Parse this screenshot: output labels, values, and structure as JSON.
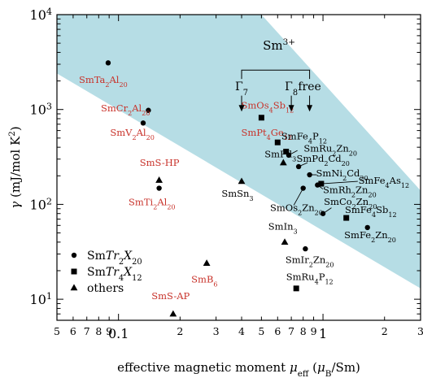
{
  "chart_data": {
    "type": "scatter",
    "title": "",
    "xlabel": {
      "prefix": "effective magnetic moment ",
      "sym": "μ",
      "sub": "eff",
      "unit_open": " (",
      "unit_sym": "μ",
      "unit_sub": "B",
      "unit_close": "/Sm)"
    },
    "ylabel": {
      "sym": "γ",
      "unit": " (mJ/mol K",
      "sup": "2",
      "close": ")"
    },
    "x_scale": "log",
    "y_scale": "log",
    "xlim": [
      0.05,
      3
    ],
    "ylim": [
      6,
      10000
    ],
    "grid": false,
    "x_tick_labels": [
      {
        "v": 0.05,
        "t": "5"
      },
      {
        "v": 0.06,
        "t": "6"
      },
      {
        "v": 0.07,
        "t": "7"
      },
      {
        "v": 0.08,
        "t": "8"
      },
      {
        "v": 0.09,
        "t": "9"
      },
      {
        "v": 0.1,
        "t": "0.1",
        "major": true
      },
      {
        "v": 0.2,
        "t": "2"
      },
      {
        "v": 0.3,
        "t": "3"
      },
      {
        "v": 0.4,
        "t": "4"
      },
      {
        "v": 0.5,
        "t": "5"
      },
      {
        "v": 0.6,
        "t": "6"
      },
      {
        "v": 0.7,
        "t": "7"
      },
      {
        "v": 0.8,
        "t": "8"
      },
      {
        "v": 0.9,
        "t": "9"
      },
      {
        "v": 1,
        "t": "1",
        "major": true
      },
      {
        "v": 2,
        "t": "2"
      },
      {
        "v": 3,
        "t": "3"
      }
    ],
    "y_tick_labels": [
      {
        "v": 10,
        "base": "10",
        "exp": "1"
      },
      {
        "v": 100,
        "base": "10",
        "exp": "2"
      },
      {
        "v": 1000,
        "base": "10",
        "exp": "3"
      },
      {
        "v": 10000,
        "base": "10",
        "exp": "4"
      }
    ],
    "band": {
      "color": "#b6dde5",
      "upper": [
        [
          0.05,
          10000
        ],
        [
          0.5,
          10000
        ],
        [
          3,
          140
        ]
      ],
      "lower": [
        [
          0.05,
          2400
        ],
        [
          3,
          13
        ]
      ]
    },
    "highlight_color": "#c8322a",
    "points": [
      {
        "name": "SmTa2Al20",
        "marker": "circle",
        "x": 0.089,
        "y": 3100
      },
      {
        "name": "SmCr2Al20",
        "marker": "circle",
        "x": 0.14,
        "y": 980
      },
      {
        "name": "SmV2Al20",
        "marker": "circle",
        "x": 0.132,
        "y": 720
      },
      {
        "name": "SmS-HP",
        "marker": "triangle",
        "x": 0.158,
        "y": 180
      },
      {
        "name": "SmTi2Al20",
        "marker": "circle",
        "x": 0.158,
        "y": 148
      },
      {
        "name": "SmB6",
        "marker": "triangle",
        "x": 0.27,
        "y": 24
      },
      {
        "name": "SmS-AP",
        "marker": "triangle",
        "x": 0.185,
        "y": 7
      },
      {
        "name": "SmSn3",
        "marker": "triangle",
        "x": 0.4,
        "y": 175
      },
      {
        "name": "SmOs4Sb12",
        "marker": "square",
        "x": 0.5,
        "y": 820
      },
      {
        "name": "SmPt4Ge12",
        "marker": "square",
        "x": 0.6,
        "y": 450
      },
      {
        "name": "SmFe4P12",
        "marker": "square",
        "x": 0.66,
        "y": 360
      },
      {
        "name": "SmRu2Zn20",
        "marker": "circle",
        "x": 0.68,
        "y": 330
      },
      {
        "name": "SmPd3",
        "marker": "triangle",
        "x": 0.64,
        "y": 275
      },
      {
        "name": "SmPd2Cd20",
        "marker": "circle",
        "x": 0.76,
        "y": 250
      },
      {
        "name": "SmNi2Cd20",
        "marker": "circle",
        "x": 0.86,
        "y": 205
      },
      {
        "name": "SmFe4As12",
        "marker": "square",
        "x": 0.98,
        "y": 165
      },
      {
        "name": "SmRh2Zn20",
        "marker": "circle",
        "x": 0.94,
        "y": 160
      },
      {
        "name": "SmOs2Zn20",
        "marker": "circle",
        "x": 0.8,
        "y": 148
      },
      {
        "name": "SmCo2Zn20",
        "marker": "circle",
        "x": 1.0,
        "y": 80
      },
      {
        "name": "SmFe4Sb12",
        "marker": "square",
        "x": 1.3,
        "y": 72
      },
      {
        "name": "SmFe2Zn20",
        "marker": "circle",
        "x": 1.65,
        "y": 57
      },
      {
        "name": "SmIn3",
        "marker": "triangle",
        "x": 0.65,
        "y": 40
      },
      {
        "name": "SmIr2Zn20",
        "marker": "circle",
        "x": 0.82,
        "y": 34
      },
      {
        "name": "SmRu4P12",
        "marker": "square",
        "x": 0.74,
        "y": 13
      }
    ],
    "labels": [
      {
        "point": "SmTa2Al20",
        "parts": [
          [
            "Sm"
          ],
          [
            "Ta"
          ],
          [
            "2",
            "sub"
          ],
          [
            "Al"
          ],
          [
            "20",
            "sub"
          ]
        ],
        "highlight": true,
        "x": 0.064,
        "y": 1900
      },
      {
        "point": "SmCr2Al20",
        "parts": [
          [
            "Sm"
          ],
          [
            "Cr"
          ],
          [
            "2",
            "sub"
          ],
          [
            "Al"
          ],
          [
            "20",
            "sub"
          ]
        ],
        "highlight": true,
        "x": 0.082,
        "y": 960
      },
      {
        "point": "SmV2Al20",
        "parts": [
          [
            "Sm"
          ],
          [
            "V"
          ],
          [
            "2",
            "sub"
          ],
          [
            "Al"
          ],
          [
            "20",
            "sub"
          ]
        ],
        "highlight": true,
        "x": 0.091,
        "y": 530
      },
      {
        "point": "SmS-HP",
        "parts": [
          [
            "SmS-HP"
          ]
        ],
        "highlight": true,
        "x": 0.127,
        "y": 255
      },
      {
        "point": "SmTi2Al20",
        "parts": [
          [
            "Sm"
          ],
          [
            "Ti"
          ],
          [
            "2",
            "sub"
          ],
          [
            "Al"
          ],
          [
            "20",
            "sub"
          ]
        ],
        "highlight": true,
        "x": 0.112,
        "y": 98
      },
      {
        "point": "SmB6",
        "parts": [
          [
            "Sm"
          ],
          [
            "B"
          ],
          [
            "6",
            "sub"
          ]
        ],
        "highlight": true,
        "x": 0.227,
        "y": 15
      },
      {
        "point": "SmS-AP",
        "parts": [
          [
            "SmS-AP"
          ]
        ],
        "highlight": true,
        "x": 0.145,
        "y": 10
      },
      {
        "point": "SmSn3",
        "parts": [
          [
            "Sm"
          ],
          [
            "Sn"
          ],
          [
            "3",
            "sub"
          ]
        ],
        "highlight": false,
        "x": 0.319,
        "y": 120
      },
      {
        "point": "SmOs4Sb12",
        "parts": [
          [
            "Sm"
          ],
          [
            "Os"
          ],
          [
            "4",
            "sub"
          ],
          [
            "Sb"
          ],
          [
            "12",
            "sub"
          ]
        ],
        "highlight": true,
        "x": 0.398,
        "y": 1020
      },
      {
        "point": "SmPt4Ge12",
        "parts": [
          [
            "Sm"
          ],
          [
            "Pt"
          ],
          [
            "4",
            "sub"
          ],
          [
            "Ge"
          ],
          [
            "12",
            "sub"
          ]
        ],
        "highlight": true,
        "x": 0.398,
        "y": 530
      },
      {
        "point": "SmFe4P12",
        "parts": [
          [
            "Sm"
          ],
          [
            "Fe"
          ],
          [
            "4",
            "sub"
          ],
          [
            "P"
          ],
          [
            "12",
            "sub"
          ]
        ],
        "highlight": false,
        "x": 0.626,
        "y": 485
      },
      {
        "point": "SmRu2Zn20",
        "parts": [
          [
            "Sm"
          ],
          [
            "Ru"
          ],
          [
            "2",
            "sub"
          ],
          [
            "Zn"
          ],
          [
            "20",
            "sub"
          ]
        ],
        "highlight": false,
        "x": 0.805,
        "y": 360
      },
      {
        "point": "SmPd3",
        "parts": [
          [
            "Sm"
          ],
          [
            "Pd"
          ],
          [
            "3",
            "sub"
          ]
        ],
        "highlight": false,
        "x": 0.518,
        "y": 315
      },
      {
        "point": "SmPd2Cd20",
        "parts": [
          [
            "Sm"
          ],
          [
            "Pd"
          ],
          [
            "2",
            "sub"
          ],
          [
            "Cd"
          ],
          [
            "20",
            "sub"
          ]
        ],
        "highlight": false,
        "x": 0.742,
        "y": 282
      },
      {
        "point": "SmNi2Cd20",
        "parts": [
          [
            "Sm"
          ],
          [
            "Ni"
          ],
          [
            "2",
            "sub"
          ],
          [
            "Cd"
          ],
          [
            "20",
            "sub"
          ]
        ],
        "highlight": false,
        "x": 0.925,
        "y": 198
      },
      {
        "point": "SmFe4As12",
        "parts": [
          [
            "Sm"
          ],
          [
            "Fe"
          ],
          [
            "4",
            "sub"
          ],
          [
            "As"
          ],
          [
            "12",
            "sub"
          ]
        ],
        "highlight": false,
        "x": 1.49,
        "y": 165
      },
      {
        "point": "SmRh2Zn20",
        "parts": [
          [
            "Sm"
          ],
          [
            "Rh"
          ],
          [
            "2",
            "sub"
          ],
          [
            "Zn"
          ],
          [
            "20",
            "sub"
          ]
        ],
        "highlight": false,
        "x": 1.0,
        "y": 132
      },
      {
        "point": "SmOs2Zn20",
        "parts": [
          [
            "Sm"
          ],
          [
            "Os"
          ],
          [
            "2",
            "sub"
          ],
          [
            "Zn"
          ],
          [
            "20",
            "sub"
          ]
        ],
        "highlight": false,
        "x": 0.551,
        "y": 85
      },
      {
        "point": "SmCo2Zn20",
        "parts": [
          [
            "Sm"
          ],
          [
            "Co"
          ],
          [
            "2",
            "sub"
          ],
          [
            "Zn"
          ],
          [
            "20",
            "sub"
          ]
        ],
        "highlight": false,
        "x": 1.01,
        "y": 99
      },
      {
        "point": "SmFe4Sb12",
        "parts": [
          [
            "Sm"
          ],
          [
            "Fe"
          ],
          [
            "4",
            "sub"
          ],
          [
            "Sb"
          ],
          [
            "12",
            "sub"
          ]
        ],
        "highlight": false,
        "x": 1.28,
        "y": 81
      },
      {
        "point": "SmFe2Zn20",
        "parts": [
          [
            "Sm"
          ],
          [
            "Fe"
          ],
          [
            "2",
            "sub"
          ],
          [
            "Zn"
          ],
          [
            "20",
            "sub"
          ]
        ],
        "highlight": false,
        "x": 1.27,
        "y": 44
      },
      {
        "point": "SmIn3",
        "parts": [
          [
            "Sm"
          ],
          [
            "In"
          ],
          [
            "3",
            "sub"
          ]
        ],
        "highlight": false,
        "x": 0.54,
        "y": 54
      },
      {
        "point": "SmIr2Zn20",
        "parts": [
          [
            "Sm"
          ],
          [
            "Ir"
          ],
          [
            "2",
            "sub"
          ],
          [
            "Zn"
          ],
          [
            "20",
            "sub"
          ]
        ],
        "highlight": false,
        "x": 0.655,
        "y": 24
      },
      {
        "point": "SmRu4P12",
        "parts": [
          [
            "Sm"
          ],
          [
            "Ru"
          ],
          [
            "4",
            "sub"
          ],
          [
            "P"
          ],
          [
            "12",
            "sub"
          ]
        ],
        "highlight": false,
        "x": 0.66,
        "y": 16
      }
    ],
    "leaders": [
      {
        "from": [
          0.68,
          330
        ],
        "to": [
          0.75,
          370
        ]
      },
      {
        "from": [
          0.76,
          250
        ],
        "to": [
          0.84,
          275
        ]
      },
      {
        "from": [
          0.86,
          205
        ],
        "to": [
          0.93,
          205
        ]
      },
      {
        "from": [
          0.98,
          165
        ],
        "to": [
          1.48,
          175
        ]
      },
      {
        "from": [
          0.94,
          160
        ],
        "to": [
          1.0,
          145
        ]
      },
      {
        "from": [
          0.8,
          148
        ],
        "to": [
          0.72,
          98
        ]
      },
      {
        "from": [
          1.0,
          80
        ],
        "to": [
          1.1,
          92
        ]
      }
    ],
    "annotation": {
      "title": "Sm",
      "title_sup": "3+",
      "title_x": 0.61,
      "title_y": 4300,
      "bracket": {
        "x1": 0.4,
        "x2": 0.86,
        "y_top": 2600,
        "y_bottom": 2100
      },
      "arrows": [
        {
          "label": "Γ",
          "sub": "7",
          "x": 0.4,
          "y_label": 1600,
          "y_from": 1400,
          "y_to": 950
        },
        {
          "label": "Γ",
          "sub": "8",
          "x": 0.7,
          "y_label": 1600,
          "y_from": 1400,
          "y_to": 950
        },
        {
          "label": "free",
          "sub": "",
          "x": 0.86,
          "y_label": 1600,
          "y_from": 1400,
          "y_to": 950
        }
      ]
    },
    "legend": {
      "placement": "bottom-left",
      "entries": [
        {
          "marker": "circle",
          "parts": [
            [
              "Sm"
            ],
            [
              "Tr",
              "it"
            ],
            [
              "2",
              "sub"
            ],
            [
              "X",
              "it"
            ],
            [
              "20",
              "sub"
            ]
          ]
        },
        {
          "marker": "square",
          "parts": [
            [
              "Sm"
            ],
            [
              "Tr",
              "it"
            ],
            [
              "4",
              "sub"
            ],
            [
              "X",
              "it"
            ],
            [
              "12",
              "sub"
            ]
          ]
        },
        {
          "marker": "triangle",
          "parts": [
            [
              "others"
            ]
          ]
        }
      ]
    }
  }
}
